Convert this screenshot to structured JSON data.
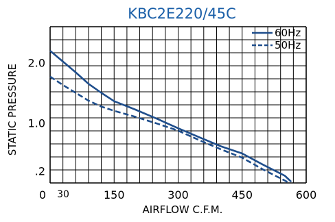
{
  "chart_data": {
    "type": "line",
    "title": "KBC2E220/45C",
    "xlabel": "AIRFLOW C.F.M.",
    "ylabel": "STATIC PRESSURE",
    "xlim": [
      0,
      600
    ],
    "ylim": [
      0,
      2.6
    ],
    "grid": true,
    "legend_position": "top-right",
    "x_ticks": [
      {
        "value": 0,
        "label": "0"
      },
      {
        "value": 30,
        "label": "30"
      },
      {
        "value": 150,
        "label": "150"
      },
      {
        "value": 300,
        "label": "300"
      },
      {
        "value": 450,
        "label": "450"
      },
      {
        "value": 600,
        "label": "600"
      }
    ],
    "y_ticks": [
      {
        "value": 2.0,
        "label": "2.0"
      },
      {
        "value": 1.0,
        "label": "1.0"
      },
      {
        "value": 0.2,
        "label": ".2"
      },
      {
        "value": 0,
        "label": "0"
      }
    ],
    "series": [
      {
        "name": "60Hz",
        "style": "solid",
        "x": [
          0,
          30,
          60,
          90,
          120,
          150,
          200,
          250,
          300,
          350,
          400,
          450,
          500,
          550,
          565
        ],
        "y": [
          2.2,
          2.02,
          1.84,
          1.65,
          1.5,
          1.36,
          1.22,
          1.07,
          0.91,
          0.76,
          0.61,
          0.49,
          0.3,
          0.12,
          0.02
        ]
      },
      {
        "name": "50Hz",
        "style": "dashed",
        "x": [
          0,
          30,
          60,
          90,
          120,
          150,
          200,
          250,
          300,
          350,
          400,
          450,
          500,
          550,
          560
        ],
        "y": [
          1.77,
          1.63,
          1.5,
          1.37,
          1.27,
          1.2,
          1.1,
          0.99,
          0.87,
          0.71,
          0.56,
          0.42,
          0.22,
          0.04,
          0.0
        ]
      }
    ],
    "colors": {
      "line": "#1f4e8c",
      "title": "#1a5fa8",
      "grid": "#000000",
      "text": "#000000"
    }
  }
}
